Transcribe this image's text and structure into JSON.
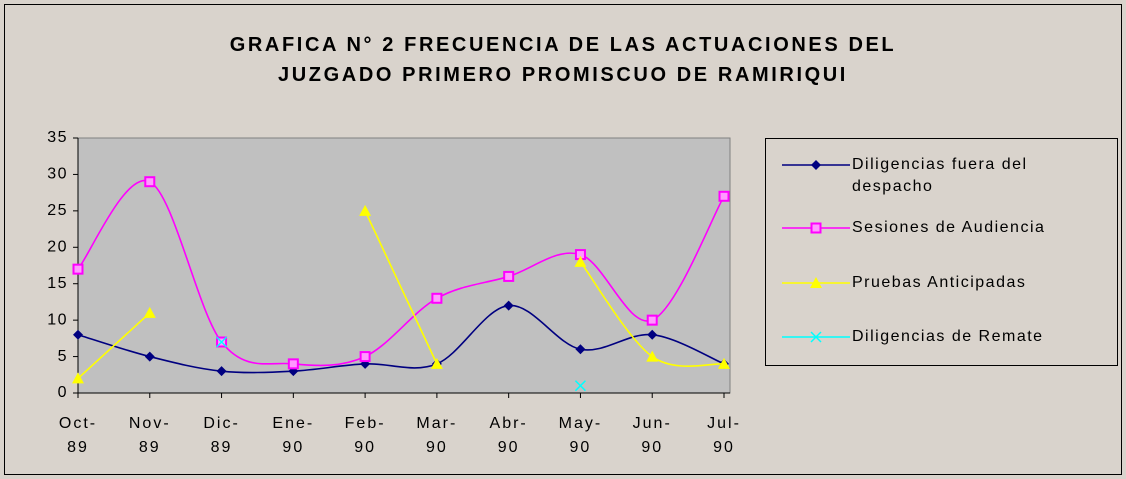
{
  "chart_data": {
    "type": "line",
    "title": "GRAFICA N° 2 FRECUENCIA DE LAS ACTUACIONES DEL\nJUZGADO PRIMERO PROMISCUO DE RAMIRIQUI",
    "categories": [
      "Oct-\n89",
      "Nov-\n89",
      "Dic-\n89",
      "Ene-\n90",
      "Feb-\n90",
      "Mar-\n90",
      "Abr-\n90",
      "May-\n90",
      "Jun-\n90",
      "Jul-\n90"
    ],
    "series": [
      {
        "name": "Diligencias fuera del despacho",
        "color": "#000080",
        "marker": "diamond",
        "values": [
          8,
          5,
          3,
          3,
          4,
          4,
          12,
          6,
          8,
          4
        ]
      },
      {
        "name": "Sesiones de Audiencia",
        "color": "#ff00ff",
        "marker": "square",
        "values": [
          17,
          29,
          7,
          4,
          5,
          13,
          16,
          19,
          10,
          27
        ]
      },
      {
        "name": "Pruebas Anticipadas",
        "color": "#ffff00",
        "marker": "triangle",
        "values": [
          2,
          11,
          null,
          null,
          25,
          4,
          null,
          18,
          5,
          4
        ]
      },
      {
        "name": "Diligencias de Remate",
        "color": "#00ffff",
        "marker": "x",
        "values": [
          null,
          null,
          7,
          null,
          null,
          null,
          null,
          1,
          null,
          null
        ]
      }
    ],
    "ylim": [
      0,
      35
    ],
    "yticks": [
      0,
      5,
      10,
      15,
      20,
      25,
      30,
      35
    ],
    "smooth": true,
    "legend": "right"
  }
}
